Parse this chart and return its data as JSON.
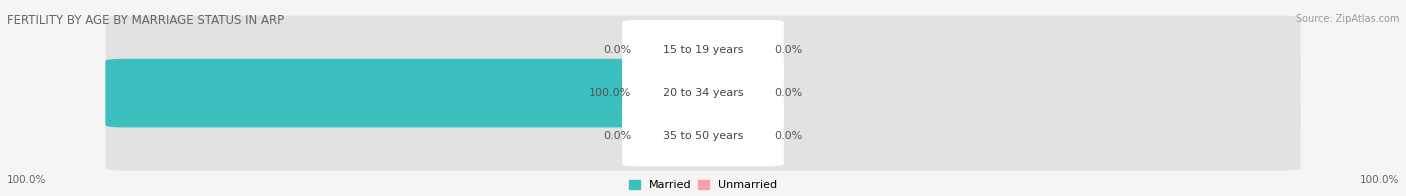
{
  "title": "FERTILITY BY AGE BY MARRIAGE STATUS IN ARP",
  "source": "Source: ZipAtlas.com",
  "categories": [
    "15 to 19 years",
    "20 to 34 years",
    "35 to 50 years"
  ],
  "married_values": [
    0.0,
    100.0,
    0.0
  ],
  "unmarried_values": [
    0.0,
    0.0,
    0.0
  ],
  "married_color": "#3bbfbf",
  "unmarried_color": "#f4a0b0",
  "bar_bg_color": "#e2e2e2",
  "bar_height": 0.62,
  "legend_married": "Married",
  "legend_unmarried": "Unmarried",
  "left_label": "100.0%",
  "right_label": "100.0%",
  "fig_bg_color": "#f5f5f5",
  "title_fontsize": 8.5,
  "label_fontsize": 8,
  "tick_fontsize": 7.5
}
